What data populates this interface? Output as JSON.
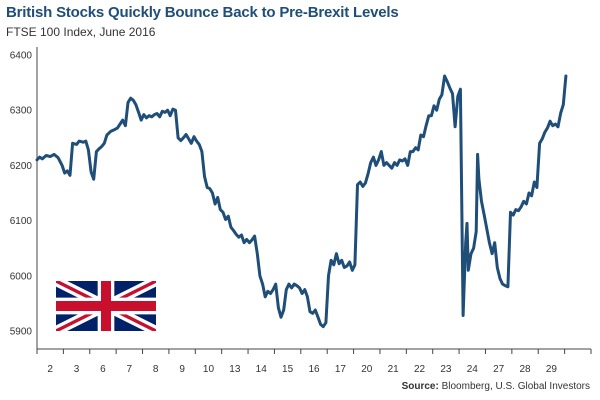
{
  "header": {
    "title": "British Stocks Quickly Bounce Back to Pre-Brexit Levels",
    "subtitle": "FTSE 100 Index, June 2016"
  },
  "footer": {
    "source_label": "Source:",
    "source_text": "Bloomberg, U.S. Global Investors"
  },
  "flag": {
    "name": "Union Jack",
    "blue": "#012169",
    "red": "#C8102E",
    "white": "#FFFFFF"
  },
  "chart_data": {
    "type": "line",
    "title": "British Stocks Quickly Bounce Back to Pre-Brexit Levels",
    "subtitle": "FTSE 100 Index, June 2016",
    "xlabel": "",
    "ylabel": "",
    "ylim": [
      5900,
      6400
    ],
    "yticks": [
      5900,
      6000,
      6100,
      6200,
      6300,
      6400
    ],
    "xlim": [
      0,
      21
    ],
    "xticks": [
      {
        "label": "2",
        "pos": 0.5
      },
      {
        "label": "3",
        "pos": 1.5
      },
      {
        "label": "6",
        "pos": 2.5
      },
      {
        "label": "7",
        "pos": 3.5
      },
      {
        "label": "8",
        "pos": 4.5
      },
      {
        "label": "9",
        "pos": 5.5
      },
      {
        "label": "10",
        "pos": 6.5
      },
      {
        "label": "13",
        "pos": 7.5
      },
      {
        "label": "14",
        "pos": 8.5
      },
      {
        "label": "15",
        "pos": 9.5
      },
      {
        "label": "16",
        "pos": 10.5
      },
      {
        "label": "17",
        "pos": 11.5
      },
      {
        "label": "20",
        "pos": 12.5
      },
      {
        "label": "21",
        "pos": 13.5
      },
      {
        "label": "22",
        "pos": 14.5
      },
      {
        "label": "23",
        "pos": 15.5
      },
      {
        "label": "24",
        "pos": 16.5
      },
      {
        "label": "27",
        "pos": 17.5
      },
      {
        "label": "28",
        "pos": 18.5
      },
      {
        "label": "29",
        "pos": 19.5
      }
    ],
    "color": "#1f4e79",
    "grid": false,
    "series": [
      {
        "name": "FTSE 100",
        "points": [
          [
            0.0,
            6210
          ],
          [
            0.1,
            6215
          ],
          [
            0.2,
            6212
          ],
          [
            0.35,
            6218
          ],
          [
            0.5,
            6216
          ],
          [
            0.65,
            6220
          ],
          [
            0.8,
            6214
          ],
          [
            0.95,
            6200
          ],
          [
            1.05,
            6186
          ],
          [
            1.15,
            6190
          ],
          [
            1.25,
            6182
          ],
          [
            1.35,
            6240
          ],
          [
            1.5,
            6238
          ],
          [
            1.6,
            6244
          ],
          [
            1.75,
            6242
          ],
          [
            1.85,
            6244
          ],
          [
            1.95,
            6228
          ],
          [
            2.05,
            6188
          ],
          [
            2.15,
            6175
          ],
          [
            2.25,
            6225
          ],
          [
            2.35,
            6230
          ],
          [
            2.45,
            6234
          ],
          [
            2.55,
            6240
          ],
          [
            2.65,
            6255
          ],
          [
            2.8,
            6262
          ],
          [
            2.95,
            6265
          ],
          [
            3.05,
            6268
          ],
          [
            3.15,
            6275
          ],
          [
            3.25,
            6282
          ],
          [
            3.35,
            6272
          ],
          [
            3.45,
            6314
          ],
          [
            3.55,
            6322
          ],
          [
            3.65,
            6318
          ],
          [
            3.75,
            6310
          ],
          [
            3.85,
            6296
          ],
          [
            3.95,
            6282
          ],
          [
            4.05,
            6292
          ],
          [
            4.15,
            6286
          ],
          [
            4.25,
            6290
          ],
          [
            4.35,
            6288
          ],
          [
            4.45,
            6292
          ],
          [
            4.55,
            6294
          ],
          [
            4.65,
            6288
          ],
          [
            4.75,
            6298
          ],
          [
            4.85,
            6296
          ],
          [
            4.95,
            6300
          ],
          [
            5.05,
            6290
          ],
          [
            5.15,
            6302
          ],
          [
            5.25,
            6300
          ],
          [
            5.35,
            6250
          ],
          [
            5.45,
            6245
          ],
          [
            5.55,
            6250
          ],
          [
            5.65,
            6256
          ],
          [
            5.75,
            6248
          ],
          [
            5.85,
            6240
          ],
          [
            5.95,
            6252
          ],
          [
            6.05,
            6244
          ],
          [
            6.15,
            6238
          ],
          [
            6.25,
            6225
          ],
          [
            6.35,
            6180
          ],
          [
            6.45,
            6160
          ],
          [
            6.55,
            6158
          ],
          [
            6.65,
            6150
          ],
          [
            6.75,
            6130
          ],
          [
            6.85,
            6142
          ],
          [
            6.95,
            6120
          ],
          [
            7.05,
            6115
          ],
          [
            7.15,
            6102
          ],
          [
            7.25,
            6108
          ],
          [
            7.35,
            6088
          ],
          [
            7.45,
            6082
          ],
          [
            7.55,
            6075
          ],
          [
            7.65,
            6070
          ],
          [
            7.75,
            6074
          ],
          [
            7.85,
            6060
          ],
          [
            7.95,
            6066
          ],
          [
            8.05,
            6060
          ],
          [
            8.15,
            6065
          ],
          [
            8.25,
            6072
          ],
          [
            8.35,
            6040
          ],
          [
            8.45,
            6000
          ],
          [
            8.55,
            5985
          ],
          [
            8.65,
            5962
          ],
          [
            8.75,
            5972
          ],
          [
            8.85,
            5968
          ],
          [
            8.95,
            5975
          ],
          [
            9.05,
            5985
          ],
          [
            9.15,
            5942
          ],
          [
            9.25,
            5925
          ],
          [
            9.35,
            5938
          ],
          [
            9.45,
            5975
          ],
          [
            9.55,
            5985
          ],
          [
            9.65,
            5978
          ],
          [
            9.75,
            5985
          ],
          [
            9.85,
            5982
          ],
          [
            9.95,
            5978
          ],
          [
            10.05,
            5968
          ],
          [
            10.15,
            5975
          ],
          [
            10.25,
            5962
          ],
          [
            10.35,
            5935
          ],
          [
            10.45,
            5932
          ],
          [
            10.55,
            5938
          ],
          [
            10.65,
            5925
          ],
          [
            10.75,
            5912
          ],
          [
            10.85,
            5908
          ],
          [
            10.95,
            5915
          ],
          [
            11.05,
            6000
          ],
          [
            11.15,
            6028
          ],
          [
            11.25,
            6020
          ],
          [
            11.35,
            6040
          ],
          [
            11.45,
            6022
          ],
          [
            11.55,
            6028
          ],
          [
            11.65,
            6015
          ],
          [
            11.75,
            6018
          ],
          [
            11.85,
            6025
          ],
          [
            11.95,
            6010
          ],
          [
            12.05,
            6020
          ],
          [
            12.15,
            6165
          ],
          [
            12.25,
            6170
          ],
          [
            12.35,
            6162
          ],
          [
            12.45,
            6168
          ],
          [
            12.55,
            6185
          ],
          [
            12.65,
            6205
          ],
          [
            12.75,
            6215
          ],
          [
            12.85,
            6200
          ],
          [
            12.95,
            6210
          ],
          [
            13.05,
            6225
          ],
          [
            13.15,
            6200
          ],
          [
            13.25,
            6205
          ],
          [
            13.35,
            6200
          ],
          [
            13.45,
            6195
          ],
          [
            13.55,
            6205
          ],
          [
            13.65,
            6200
          ],
          [
            13.75,
            6210
          ],
          [
            13.85,
            6208
          ],
          [
            13.95,
            6212
          ],
          [
            14.05,
            6200
          ],
          [
            14.15,
            6225
          ],
          [
            14.25,
            6225
          ],
          [
            14.35,
            6232
          ],
          [
            14.45,
            6228
          ],
          [
            14.55,
            6255
          ],
          [
            14.65,
            6252
          ],
          [
            14.75,
            6272
          ],
          [
            14.85,
            6290
          ],
          [
            14.95,
            6290
          ],
          [
            15.05,
            6308
          ],
          [
            15.15,
            6300
          ],
          [
            15.25,
            6320
          ],
          [
            15.35,
            6328
          ],
          [
            15.45,
            6362
          ],
          [
            15.55,
            6352
          ],
          [
            15.65,
            6340
          ],
          [
            15.75,
            6330
          ],
          [
            15.85,
            6270
          ],
          [
            15.95,
            6325
          ],
          [
            16.05,
            6338
          ],
          [
            16.15,
            5928
          ],
          [
            16.25,
            6060
          ],
          [
            16.3,
            6095
          ],
          [
            16.35,
            6010
          ],
          [
            16.45,
            6040
          ],
          [
            16.55,
            6050
          ],
          [
            16.65,
            6080
          ],
          [
            16.7,
            6220
          ],
          [
            16.75,
            6175
          ],
          [
            16.85,
            6135
          ],
          [
            16.95,
            6110
          ],
          [
            17.05,
            6085
          ],
          [
            17.15,
            6060
          ],
          [
            17.25,
            6040
          ],
          [
            17.35,
            6060
          ],
          [
            17.45,
            6015
          ],
          [
            17.55,
            5995
          ],
          [
            17.65,
            5985
          ],
          [
            17.75,
            5982
          ],
          [
            17.85,
            5980
          ],
          [
            17.95,
            6115
          ],
          [
            18.05,
            6110
          ],
          [
            18.15,
            6120
          ],
          [
            18.25,
            6118
          ],
          [
            18.35,
            6125
          ],
          [
            18.45,
            6135
          ],
          [
            18.55,
            6130
          ],
          [
            18.65,
            6150
          ],
          [
            18.75,
            6145
          ],
          [
            18.85,
            6170
          ],
          [
            18.95,
            6160
          ],
          [
            19.05,
            6240
          ],
          [
            19.15,
            6248
          ],
          [
            19.25,
            6260
          ],
          [
            19.35,
            6268
          ],
          [
            19.45,
            6280
          ],
          [
            19.55,
            6272
          ],
          [
            19.65,
            6275
          ],
          [
            19.75,
            6270
          ],
          [
            19.85,
            6295
          ],
          [
            19.95,
            6310
          ],
          [
            20.05,
            6362
          ]
        ]
      }
    ]
  }
}
